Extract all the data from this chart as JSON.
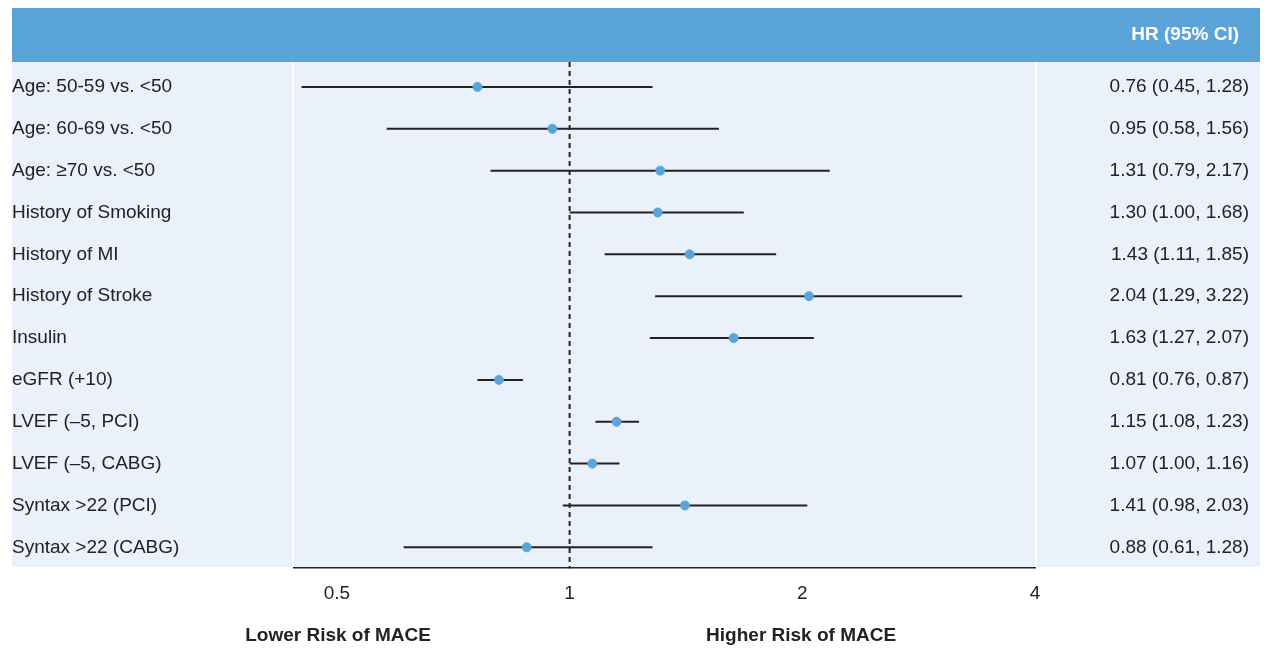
{
  "chart_data": {
    "type": "scatter",
    "orientation": "horizontal",
    "log": "x",
    "grid": false,
    "legend": false,
    "marker": "circle",
    "categories": [
      "Age: 50-59 vs. <50",
      "Age: 60-69 vs. <50",
      "Age: ≥70 vs. <50",
      "History of Smoking",
      "History of MI",
      "History of Stroke",
      "Insulin",
      "eGFR (+10)",
      "LVEF (–5, PCI)",
      "LVEF (–5, CABG)",
      "Syntax >22 (PCI)",
      "Syntax >22 (CABG)"
    ],
    "series": [
      {
        "color": "#5ba4d9",
        "values": [
          0.76,
          0.95,
          1.31,
          1.3,
          1.43,
          2.04,
          1.63,
          0.81,
          1.15,
          1.07,
          1.41,
          0.88
        ],
        "errors": [
          [
            0.45,
            1.28
          ],
          [
            0.58,
            1.56
          ],
          [
            0.79,
            2.17
          ],
          [
            1.0,
            1.68
          ],
          [
            1.11,
            1.85
          ],
          [
            1.29,
            3.22
          ],
          [
            1.27,
            2.07
          ],
          [
            0.76,
            0.87
          ],
          [
            1.08,
            1.23
          ],
          [
            1.0,
            1.16
          ],
          [
            0.98,
            2.03
          ],
          [
            0.61,
            1.28
          ]
        ],
        "value_labels": [
          "0.76 (0.45, 1.28)",
          "0.95 (0.58, 1.56)",
          "1.31 (0.79, 2.17)",
          "1.30 (1.00, 1.68)",
          "1.43 (1.11, 1.85)",
          "2.04 (1.29, 3.22)",
          "1.63 (1.27, 2.07)",
          "0.81 (0.76, 0.87)",
          "1.15 (1.08, 1.23)",
          "1.07 (1.00, 1.16)",
          "1.41 (0.98, 2.03)",
          "0.88 (0.61, 1.28)"
        ]
      }
    ],
    "xlim": [
      0.44,
      4
    ],
    "xticks": [
      0.5,
      1,
      2,
      4
    ],
    "ref_lines": [
      {
        "axis": "x",
        "value": 1,
        "color": "#222222",
        "line_style": "dashed"
      }
    ],
    "annotations": [
      "HR (95% CI)",
      "Lower Risk of MACE",
      "Higher Risk of MACE"
    ]
  }
}
